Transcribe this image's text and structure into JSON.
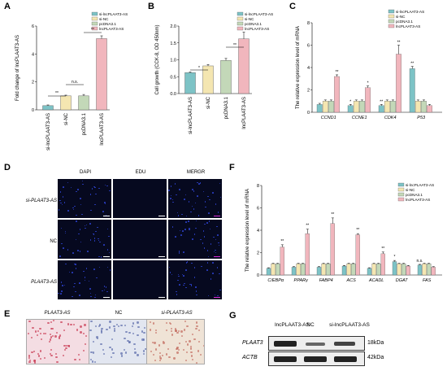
{
  "letters": {
    "A": "A",
    "B": "B",
    "C": "C",
    "D": "D",
    "E": "E",
    "F": "F",
    "G": "G"
  },
  "colors": {
    "si": "#7dc3c6",
    "nc": "#f4e6b1",
    "pc": "#c3d8b8",
    "lnc": "#f1b6bd"
  },
  "legend_small": [
    "si-lncPLAAT3-AS",
    "si-NC",
    "pcDNA3.1",
    "lncPLAAT3-AS"
  ],
  "panelA": {
    "ylabel": "Fold change of lncPLAAT3-AS",
    "yticks": [
      "0",
      "2",
      "4",
      "6"
    ],
    "categories": [
      "si-lncPLAAT3-AS",
      "si-NC",
      "pcDNA3.1",
      "lncPLAAT3-AS"
    ],
    "sig": [
      "**",
      "n.s.",
      "**"
    ]
  },
  "panelB": {
    "ylabel": "Cell growth (CCK-8, OD 450nm)",
    "yticks": [
      "0.0",
      "0.5",
      "1.0",
      "1.5",
      "2.0"
    ],
    "categories": [
      "si-lncPLAAT3-AS",
      "si-NC",
      "pcDNA3.1",
      "lncPLAAT3-AS"
    ],
    "sig": [
      "*",
      "**"
    ]
  },
  "panelC": {
    "ylabel": "The relative expression level of mRNA",
    "yticks": [
      "0",
      "2",
      "4",
      "6",
      "8"
    ],
    "genes": [
      "CCND1",
      "CCNE1",
      "CDK4",
      "P53"
    ]
  },
  "panelD": {
    "cols": [
      "DAPI",
      "EDU",
      "MERGR"
    ],
    "rows": [
      "si-PLAAT3-AS",
      "NC",
      "PLAAT3-AS"
    ]
  },
  "panelE": {
    "labels": [
      "PLAAT3-AS",
      "NC",
      "si-PLAAT3-AS"
    ]
  },
  "panelF": {
    "ylabel": "The relative expression level of mRNA",
    "yticks": [
      "0",
      "2",
      "4",
      "6",
      "8"
    ],
    "genes": [
      "C/EBPα",
      "PPARγ",
      "FABP4",
      "ACS",
      "ACADL",
      "DGAT",
      "FAS"
    ]
  },
  "panelG": {
    "lanes": [
      "lncPLAAT3-AS",
      "NC",
      "si-lncPLAAT3-AS"
    ],
    "proteins": [
      "PLAAT3",
      "ACTB"
    ],
    "sizes": [
      "18kDa",
      "42kDa"
    ]
  },
  "chart_data": [
    {
      "type": "bar",
      "title": "",
      "ylabel": "Fold change of lncPLAAT3-AS",
      "ylim": [
        0,
        6
      ],
      "categories": [
        "si-lncPLAAT3-AS",
        "si-NC",
        "pcDNA3.1",
        "lncPLAAT3-AS"
      ],
      "values": [
        0.3,
        1.0,
        1.0,
        5.1
      ],
      "errors": [
        0.05,
        0.05,
        0.1,
        0.2
      ]
    },
    {
      "type": "bar",
      "title": "",
      "ylabel": "Cell growth (CCK-8, OD 450nm)",
      "ylim": [
        0,
        2
      ],
      "categories": [
        "si-lncPLAAT3-AS",
        "si-NC",
        "pcDNA3.1",
        "lncPLAAT3-AS"
      ],
      "values": [
        0.62,
        0.82,
        0.98,
        1.62
      ],
      "errors": [
        0.02,
        0.04,
        0.06,
        0.2
      ]
    },
    {
      "type": "bar",
      "title": "",
      "ylabel": "The relative expression level of mRNA",
      "ylim": [
        0,
        8
      ],
      "categories": [
        "CCND1",
        "CCNE1",
        "CDK4",
        "P53"
      ],
      "series": [
        {
          "name": "si-lncPLAAT3-AS",
          "values": [
            0.7,
            0.6,
            0.6,
            3.9
          ],
          "errors": [
            0.1,
            0.1,
            0.1,
            0.2
          ]
        },
        {
          "name": "si-NC",
          "values": [
            1.0,
            1.0,
            1.0,
            1.0
          ],
          "errors": [
            0.1,
            0.1,
            0.1,
            0.1
          ]
        },
        {
          "name": "pcDNA3.1",
          "values": [
            1.0,
            1.0,
            1.0,
            1.0
          ],
          "errors": [
            0.1,
            0.1,
            0.1,
            0.1
          ]
        },
        {
          "name": "lncPLAAT3-AS",
          "values": [
            3.2,
            2.2,
            5.2,
            0.6
          ],
          "errors": [
            0.15,
            0.15,
            0.8,
            0.1
          ]
        }
      ]
    },
    {
      "type": "bar",
      "title": "",
      "ylabel": "The relative expression level of mRNA",
      "ylim": [
        0,
        8
      ],
      "categories": [
        "C/EBPα",
        "PPARγ",
        "FABP4",
        "ACS",
        "ACADL",
        "DGAT",
        "FAS"
      ],
      "series": [
        {
          "name": "si-lncPLAAT3-AS",
          "values": [
            0.6,
            0.7,
            0.7,
            0.8,
            0.6,
            1.2,
            0.9
          ],
          "errors": [
            0.05,
            0.05,
            0.05,
            0.05,
            0.05,
            0.1,
            0.05
          ]
        },
        {
          "name": "si-NC",
          "values": [
            1.0,
            1.0,
            1.0,
            1.0,
            1.0,
            1.0,
            1.0
          ],
          "errors": [
            0.05,
            0.05,
            0.05,
            0.05,
            0.05,
            0.05,
            0.05
          ]
        },
        {
          "name": "pcDNA3.1",
          "values": [
            1.0,
            1.0,
            1.0,
            1.0,
            1.0,
            1.0,
            1.0
          ],
          "errors": [
            0.05,
            0.05,
            0.05,
            0.05,
            0.05,
            0.05,
            0.05
          ]
        },
        {
          "name": "lncPLAAT3-AS",
          "values": [
            2.5,
            3.7,
            4.6,
            3.6,
            1.9,
            0.8,
            0.7
          ],
          "errors": [
            0.2,
            0.4,
            0.5,
            0.1,
            0.15,
            0.05,
            0.05
          ]
        }
      ],
      "significance": [
        "**",
        "**",
        "**",
        "**",
        "**",
        "*",
        "n.s."
      ]
    }
  ]
}
